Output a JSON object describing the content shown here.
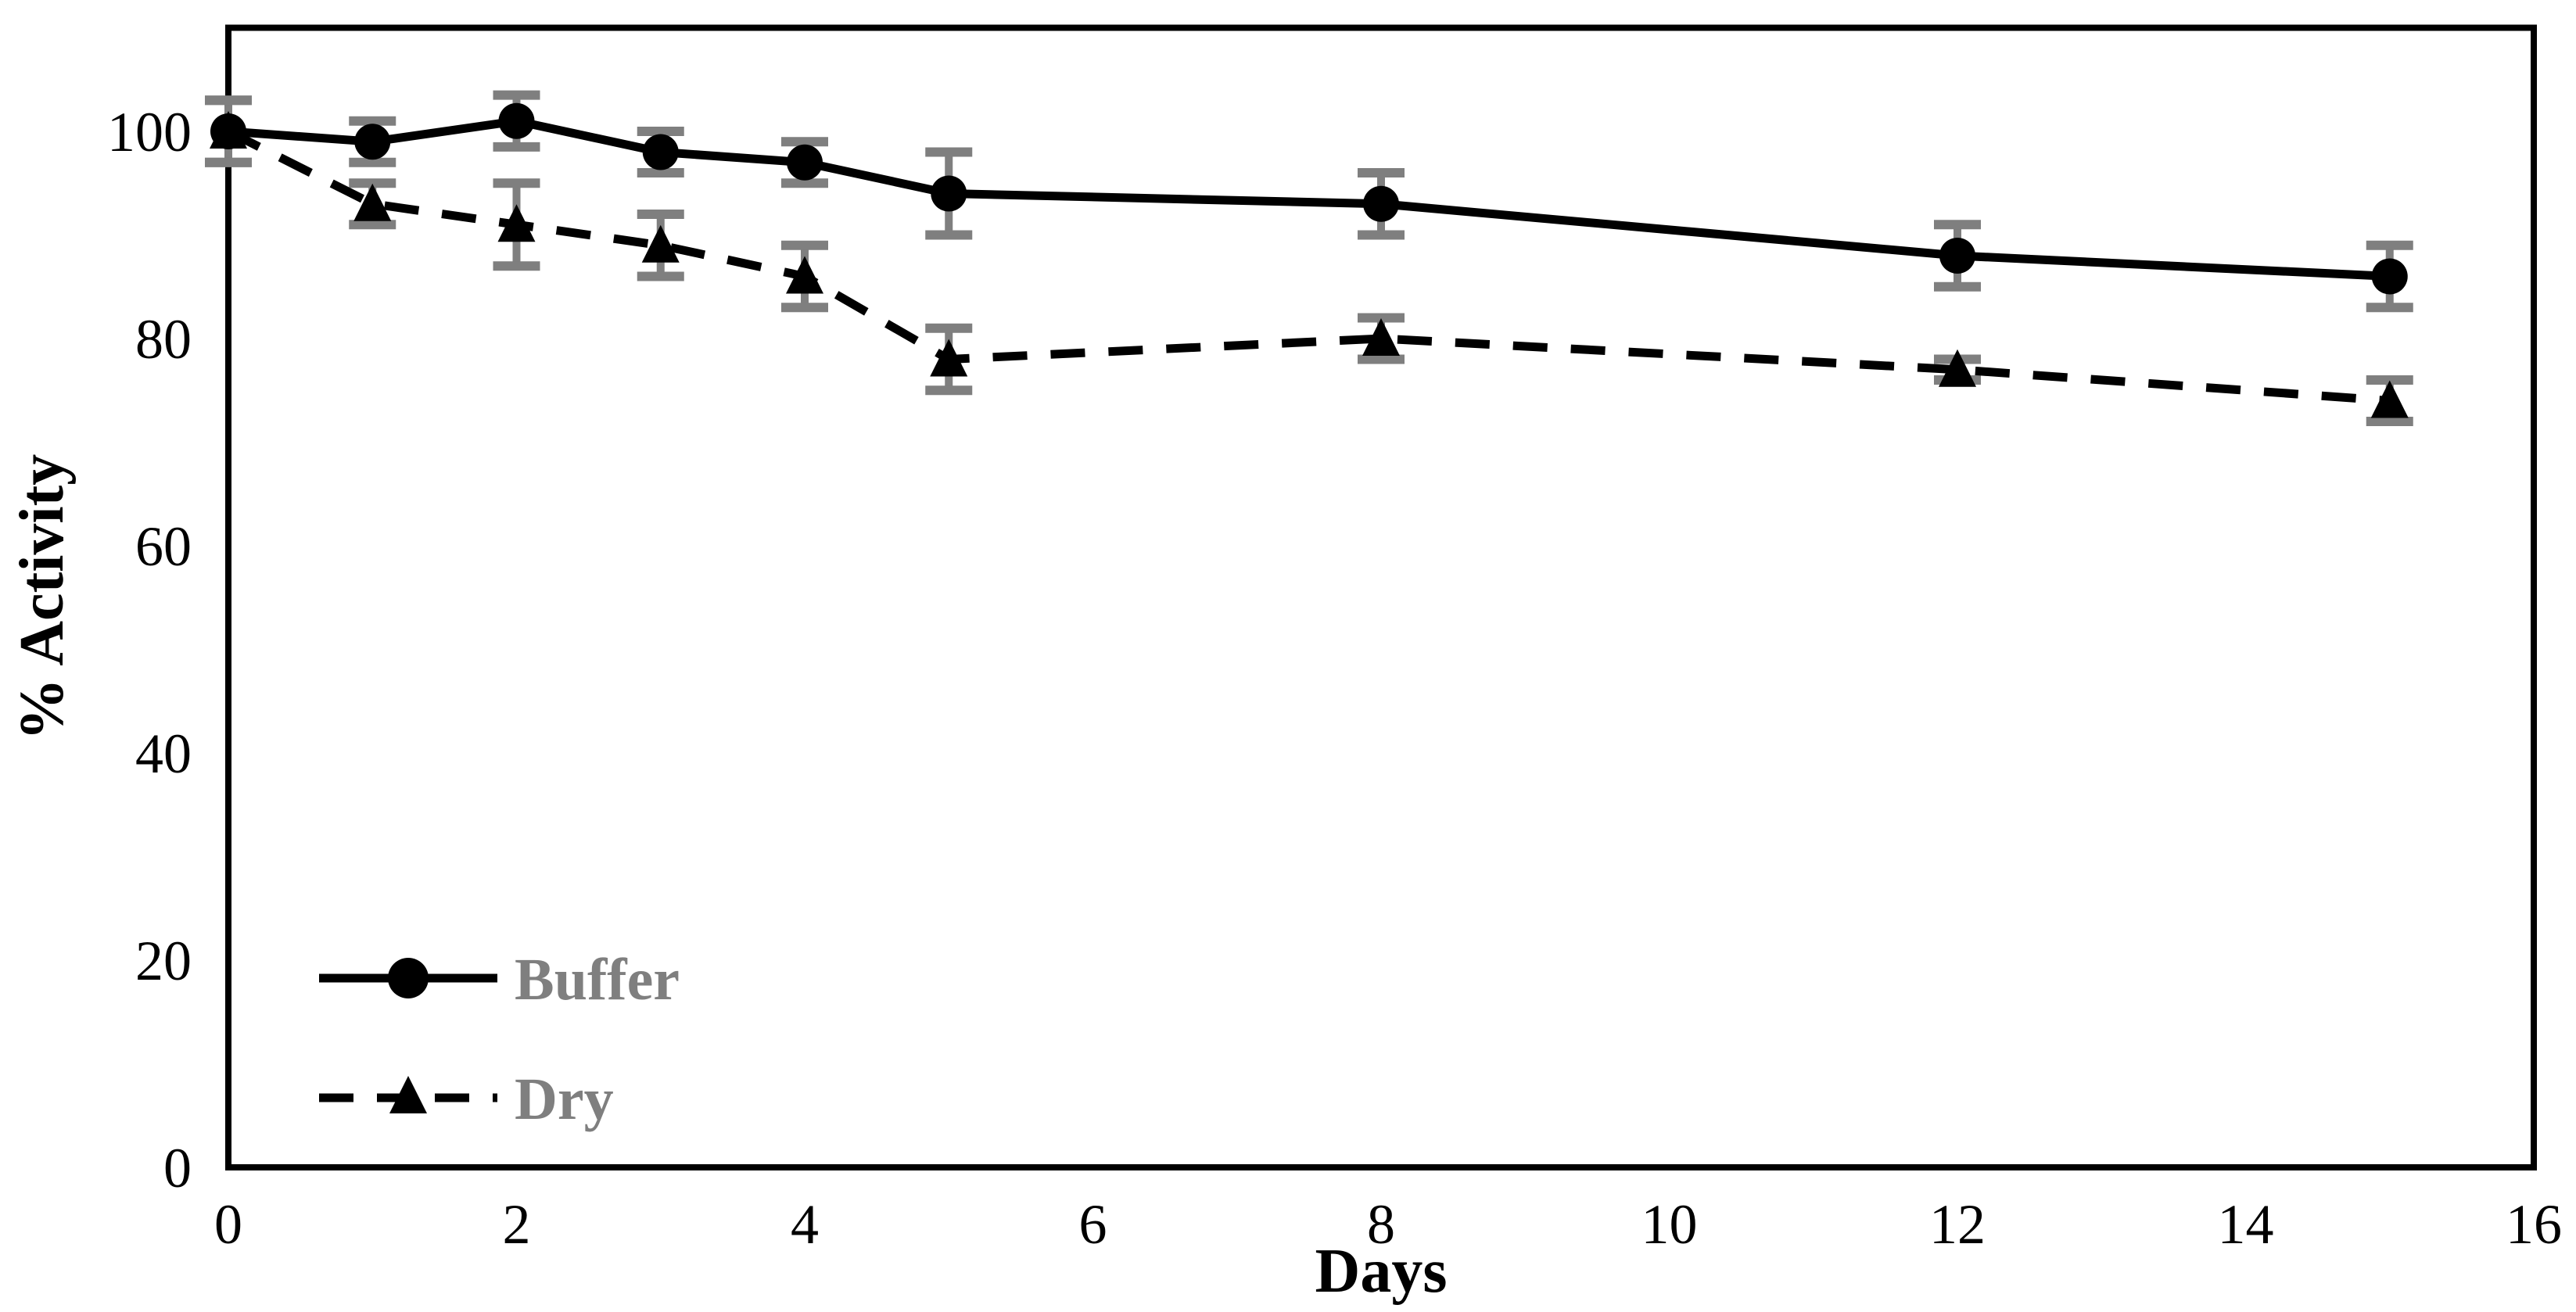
{
  "chart_data": {
    "type": "line",
    "title": "",
    "xlabel": "Days",
    "ylabel": "% Activity",
    "x": [
      0,
      1,
      2,
      3,
      4,
      5,
      8,
      12,
      15
    ],
    "series": [
      {
        "name": "Dry",
        "values": [
          100,
          93,
          91,
          89,
          86,
          78,
          80,
          77,
          74
        ],
        "errors": [
          3,
          2,
          4,
          3,
          3,
          3,
          2,
          1,
          2
        ],
        "line_style": "dashed",
        "marker": "triangle",
        "color": "#000000"
      },
      {
        "name": "Buffer",
        "values": [
          100,
          99,
          101,
          98,
          97,
          94,
          93,
          88,
          86
        ],
        "errors": [
          3,
          2,
          2.5,
          2,
          2,
          4,
          3,
          3,
          3
        ],
        "line_style": "solid",
        "marker": "circle",
        "color": "#000000"
      }
    ],
    "legend_order": [
      "Buffer",
      "Dry"
    ],
    "xlim": [
      0,
      16
    ],
    "ylim": [
      0,
      110
    ],
    "xticks": [
      0,
      2,
      4,
      6,
      8,
      10,
      12,
      14,
      16
    ],
    "yticks": [
      0,
      20,
      40,
      60,
      80,
      100
    ],
    "grid": false,
    "legend_position": "lower-left",
    "error_bar_color": "#7f7f7f",
    "legend_text_color": "#7f7f7f",
    "axis_color": "#000000",
    "background_color": "#ffffff"
  }
}
